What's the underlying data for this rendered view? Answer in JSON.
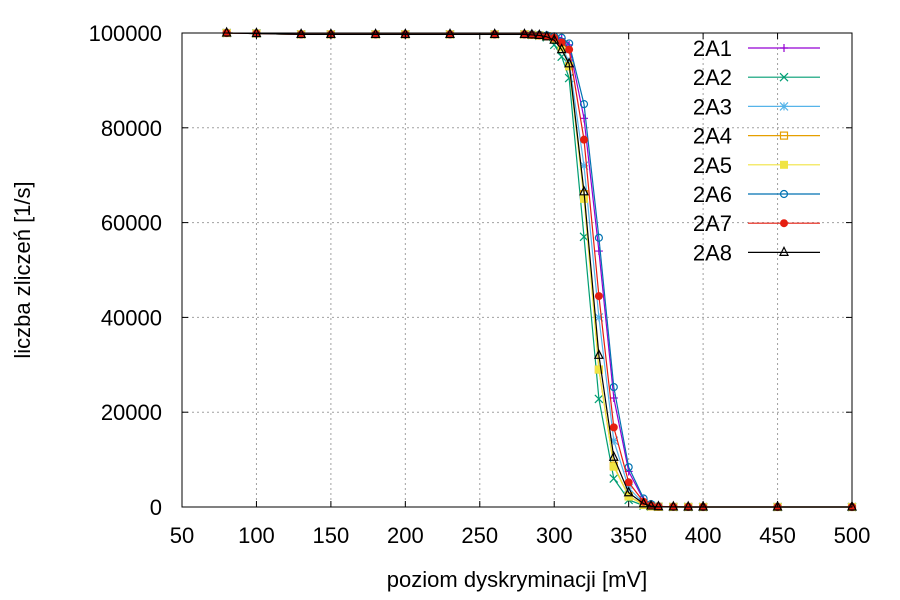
{
  "chart_data": {
    "type": "line",
    "title": "",
    "xlabel": "poziom dyskryminacji [mV]",
    "ylabel": "liczba zliczeń [1/s]",
    "xlim": [
      50,
      500
    ],
    "ylim": [
      0,
      100000
    ],
    "xticks": [
      50,
      100,
      150,
      200,
      250,
      300,
      350,
      400,
      450,
      500
    ],
    "yticks": [
      0,
      20000,
      40000,
      60000,
      80000,
      100000
    ],
    "grid": true,
    "legend_position": "top-right",
    "x": [
      80,
      100,
      130,
      150,
      180,
      200,
      230,
      260,
      280,
      285,
      290,
      295,
      300,
      305,
      310,
      320,
      330,
      340,
      350,
      360,
      365,
      370,
      380,
      390,
      400,
      450,
      500
    ],
    "series": [
      {
        "name": "2A1",
        "color": "#9400d3",
        "marker": "plus",
        "values": [
          100000,
          99900,
          99700,
          99700,
          99700,
          99700,
          99700,
          99700,
          99700,
          99600,
          99500,
          99400,
          99200,
          98800,
          97500,
          82000,
          54000,
          23000,
          7500,
          1500,
          500,
          100,
          30,
          10,
          5,
          0,
          0
        ]
      },
      {
        "name": "2A2",
        "color": "#009e73",
        "marker": "x",
        "values": [
          100000,
          99900,
          99700,
          99700,
          99700,
          99700,
          99700,
          99700,
          99700,
          99600,
          99400,
          99100,
          97500,
          95000,
          90500,
          57000,
          22800,
          6000,
          1500,
          300,
          100,
          30,
          10,
          5,
          0,
          0,
          0
        ]
      },
      {
        "name": "2A3",
        "color": "#56b4e9",
        "marker": "star",
        "values": [
          100000,
          99900,
          99700,
          99700,
          99700,
          99700,
          99700,
          99700,
          99700,
          99600,
          99500,
          99300,
          98800,
          97000,
          94000,
          72000,
          40000,
          14000,
          4000,
          800,
          300,
          80,
          20,
          5,
          0,
          0,
          0
        ]
      },
      {
        "name": "2A4",
        "color": "#e69f00",
        "marker": "square",
        "values": [
          100000,
          99900,
          99700,
          99700,
          99700,
          99700,
          99700,
          99700,
          99700,
          99600,
          99500,
          99300,
          98700,
          97000,
          93000,
          66000,
          29000,
          8700,
          2300,
          500,
          150,
          40,
          10,
          5,
          0,
          0,
          0
        ]
      },
      {
        "name": "2A5",
        "color": "#f0e442",
        "marker": "filled-square",
        "values": [
          100000,
          99900,
          99700,
          99700,
          99700,
          99700,
          99700,
          99700,
          99700,
          99600,
          99500,
          99300,
          98700,
          97000,
          93000,
          65000,
          29000,
          8500,
          2200,
          450,
          150,
          40,
          10,
          5,
          0,
          0,
          0
        ]
      },
      {
        "name": "2A6",
        "color": "#0072b2",
        "marker": "circle",
        "values": [
          100000,
          99900,
          99700,
          99700,
          99700,
          99700,
          99700,
          99700,
          99700,
          99700,
          99600,
          99500,
          99300,
          99000,
          97800,
          85000,
          56800,
          25300,
          8400,
          1800,
          600,
          150,
          40,
          10,
          5,
          0,
          0
        ]
      },
      {
        "name": "2A7",
        "color": "#e51e10",
        "marker": "filled-circle",
        "values": [
          100000,
          99900,
          99700,
          99700,
          99700,
          99700,
          99700,
          99700,
          99700,
          99600,
          99500,
          99300,
          99000,
          98000,
          96500,
          77500,
          44500,
          16800,
          5200,
          1100,
          350,
          100,
          30,
          10,
          5,
          0,
          0
        ]
      },
      {
        "name": "2A8",
        "color": "#000000",
        "marker": "triangle",
        "values": [
          100000,
          99900,
          99700,
          99700,
          99700,
          99700,
          99700,
          99700,
          99700,
          99600,
          99500,
          99200,
          98500,
          96500,
          93500,
          66500,
          32000,
          10500,
          3000,
          700,
          200,
          50,
          15,
          5,
          0,
          0,
          0
        ]
      }
    ]
  }
}
